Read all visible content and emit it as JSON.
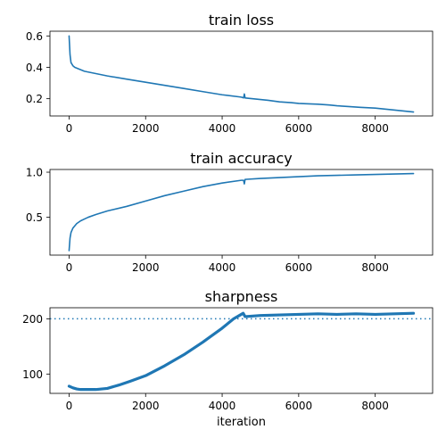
{
  "chart_data": [
    {
      "type": "line",
      "title": "train loss",
      "xlabel": "",
      "ylabel": "",
      "xlim": [
        -500,
        9500
      ],
      "ylim": [
        0.09,
        0.63
      ],
      "xticks": [
        0,
        2000,
        4000,
        6000,
        8000
      ],
      "xtick_labels": [
        "0",
        "2000",
        "4000",
        "6000",
        "8000"
      ],
      "yticks": [
        0.2,
        0.4,
        0.6
      ],
      "ytick_labels": [
        "0.2",
        "0.4",
        "0.6"
      ],
      "color": "#1f77b4",
      "series": [
        {
          "x": [
            0,
            25,
            50,
            100,
            150,
            200,
            300,
            400,
            500,
            700,
            1000,
            1500,
            2000,
            2500,
            3000,
            3500,
            4000,
            4500,
            4560,
            4580,
            4600,
            4800,
            5000,
            5200,
            5500,
            5800,
            6000,
            6200,
            6500,
            6800,
            7000,
            7300,
            7600,
            8000,
            8400,
            8800,
            9000
          ],
          "y": [
            0.6,
            0.48,
            0.43,
            0.41,
            0.4,
            0.395,
            0.385,
            0.375,
            0.37,
            0.36,
            0.345,
            0.325,
            0.305,
            0.285,
            0.265,
            0.245,
            0.225,
            0.21,
            0.205,
            0.23,
            0.205,
            0.2,
            0.195,
            0.19,
            0.18,
            0.175,
            0.17,
            0.168,
            0.165,
            0.16,
            0.155,
            0.15,
            0.145,
            0.14,
            0.13,
            0.12,
            0.115
          ]
        }
      ]
    },
    {
      "type": "line",
      "title": "train accuracy",
      "xlabel": "",
      "ylabel": "",
      "xlim": [
        -500,
        9500
      ],
      "ylim": [
        0.08,
        1.03
      ],
      "xticks": [
        0,
        2000,
        4000,
        6000,
        8000
      ],
      "xtick_labels": [
        "0",
        "2000",
        "4000",
        "6000",
        "8000"
      ],
      "yticks": [
        0.5,
        1.0
      ],
      "ytick_labels": [
        "0.5",
        "1.0"
      ],
      "color": "#1f77b4",
      "series": [
        {
          "x": [
            0,
            25,
            50,
            100,
            200,
            300,
            400,
            500,
            700,
            1000,
            1500,
            2000,
            2500,
            3000,
            3500,
            4000,
            4500,
            4560,
            4580,
            4600,
            5000,
            5500,
            6000,
            6500,
            7000,
            7500,
            8000,
            8500,
            9000
          ],
          "y": [
            0.13,
            0.27,
            0.33,
            0.38,
            0.43,
            0.46,
            0.48,
            0.5,
            0.53,
            0.57,
            0.62,
            0.68,
            0.74,
            0.79,
            0.84,
            0.88,
            0.91,
            0.91,
            0.87,
            0.92,
            0.93,
            0.94,
            0.95,
            0.96,
            0.965,
            0.97,
            0.975,
            0.98,
            0.985
          ]
        }
      ]
    },
    {
      "type": "line",
      "title": "sharpness",
      "xlabel": "iteration",
      "ylabel": "",
      "xlim": [
        -500,
        9500
      ],
      "ylim": [
        65,
        220
      ],
      "xticks": [
        0,
        2000,
        4000,
        6000,
        8000
      ],
      "xtick_labels": [
        "0",
        "2000",
        "4000",
        "6000",
        "8000"
      ],
      "yticks": [
        100,
        200
      ],
      "ytick_labels": [
        "100",
        "200"
      ],
      "color": "#1f77b4",
      "reference_line": {
        "y": 200,
        "style": "dotted"
      },
      "series": [
        {
          "x": [
            0,
            100,
            200,
            300,
            500,
            700,
            1000,
            1300,
            1600,
            2000,
            2500,
            3000,
            3500,
            4000,
            4300,
            4550,
            4600,
            5000,
            5500,
            6000,
            6500,
            7000,
            7500,
            8000,
            8500,
            9000
          ],
          "y": [
            78,
            75,
            73,
            72,
            72,
            72,
            74,
            80,
            87,
            97,
            115,
            135,
            158,
            183,
            200,
            210,
            204,
            206,
            207,
            208,
            209,
            208,
            209,
            208,
            209,
            210
          ]
        }
      ]
    }
  ]
}
